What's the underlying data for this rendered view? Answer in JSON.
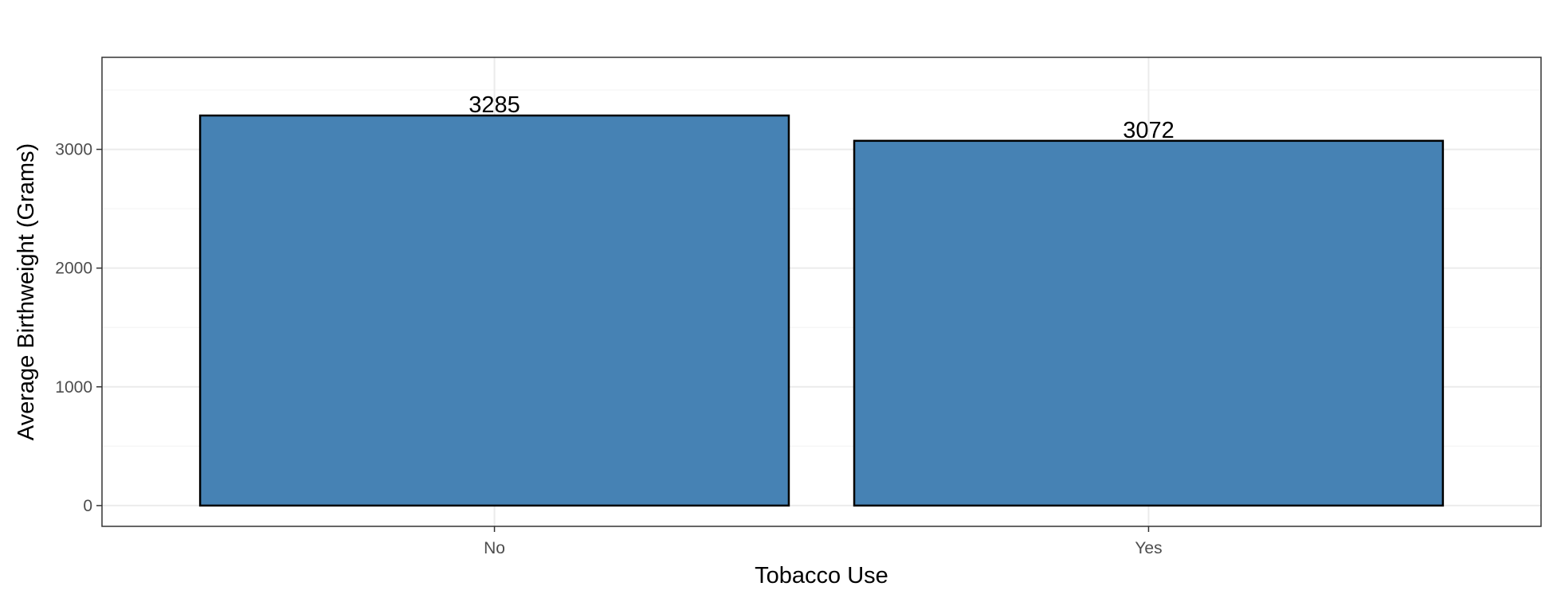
{
  "chart_data": {
    "type": "bar",
    "categories": [
      "No",
      "Yes"
    ],
    "values": [
      3285,
      3072
    ],
    "data_labels": [
      "3285",
      "3072"
    ],
    "title": "",
    "xlabel": "Tobacco Use",
    "ylabel": "Average Birthweight (Grams)",
    "ylim": [
      -175,
      3775
    ],
    "yticks": [
      0,
      1000,
      2000,
      3000
    ],
    "ytick_labels": [
      "0",
      "1000",
      "2000",
      "3000"
    ],
    "grid": true,
    "legend": "none",
    "colors": {
      "bar_fill": "#4682B4",
      "bar_stroke": "#000000",
      "grid_major": "#EBEBEB",
      "grid_minor": "#F5F5F5",
      "panel_border": "#333333",
      "tick_text": "#4D4D4D"
    }
  }
}
